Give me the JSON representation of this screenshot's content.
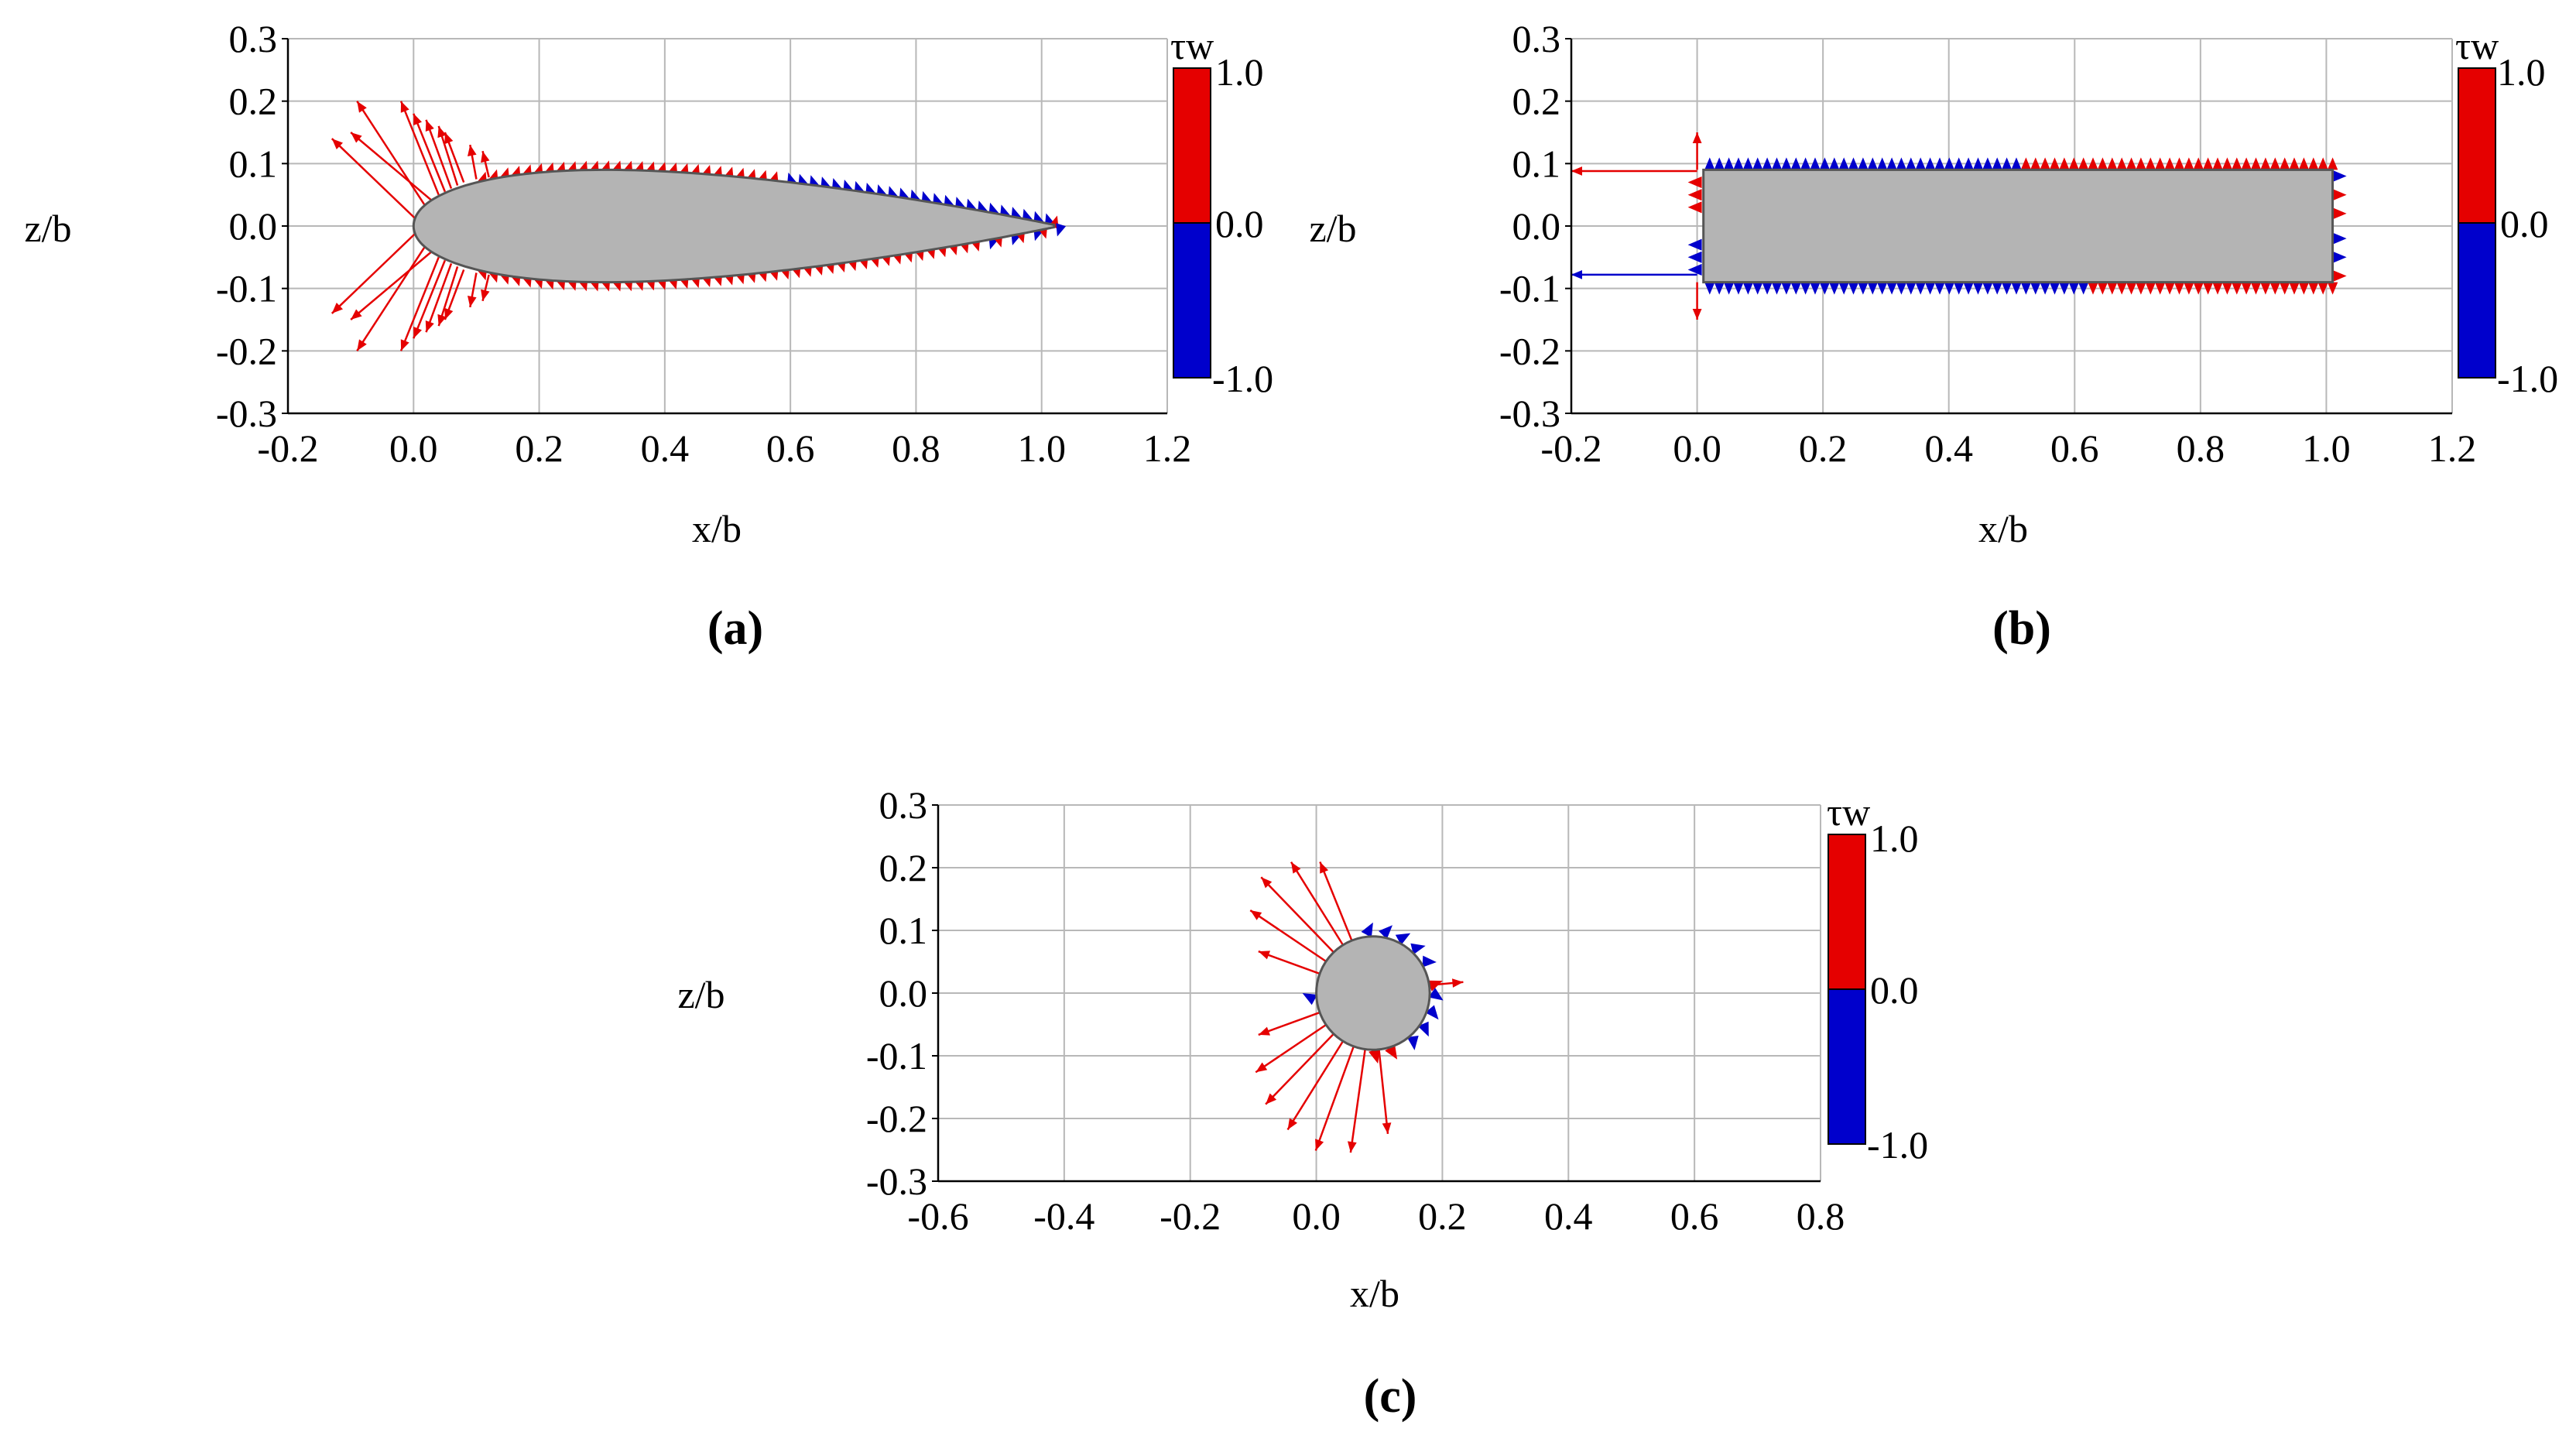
{
  "colors": {
    "positive": "#e50000",
    "negative": "#0000cc",
    "body": "#b4b4b4",
    "grid": "#b8b8b8"
  },
  "chart_data": [
    {
      "type": "vector-field",
      "panel_label": "(a)",
      "shape": "airfoil",
      "xlabel": "x/b",
      "ylabel": "z/b",
      "xlim": [
        -0.2,
        1.2
      ],
      "ylim": [
        -0.3,
        0.3
      ],
      "xticks": [
        "-0.2",
        "0.0",
        "0.2",
        "0.4",
        "0.6",
        "0.8",
        "1.0",
        "1.2"
      ],
      "yticks": [
        "0.3",
        "0.2",
        "0.1",
        "0.0",
        "-0.1",
        "-0.2",
        "-0.3"
      ],
      "colorbar": {
        "title": "τw",
        "max_label": "1.0",
        "mid_label": "0.0",
        "min_label": "-1.0",
        "range": [
          -1.0,
          1.0
        ]
      },
      "body": {
        "chord": [
          0.0,
          1.02
        ],
        "max_thickness_z": 0.09
      }
    },
    {
      "type": "vector-field",
      "panel_label": "(b)",
      "shape": "flat-plate",
      "xlabel": "x/b",
      "ylabel": "z/b",
      "xlim": [
        -0.2,
        1.2
      ],
      "ylim": [
        -0.3,
        0.3
      ],
      "xticks": [
        "-0.2",
        "0.0",
        "0.2",
        "0.4",
        "0.6",
        "0.8",
        "1.0",
        "1.2"
      ],
      "yticks": [
        "0.3",
        "0.2",
        "0.1",
        "0.0",
        "-0.1",
        "-0.2",
        "-0.3"
      ],
      "colorbar": {
        "title": "τw",
        "max_label": "1.0",
        "mid_label": "0.0",
        "min_label": "-1.0",
        "range": [
          -1.0,
          1.0
        ]
      },
      "body": {
        "x_range": [
          0.01,
          1.01
        ],
        "z_range": [
          -0.09,
          0.09
        ]
      }
    },
    {
      "type": "vector-field",
      "panel_label": "(c)",
      "shape": "circle",
      "xlabel": "x/b",
      "ylabel": "z/b",
      "xlim": [
        -0.6,
        0.8
      ],
      "ylim": [
        -0.3,
        0.3
      ],
      "xticks": [
        "-0.6",
        "-0.4",
        "-0.2",
        "0.0",
        "0.2",
        "0.4",
        "0.6",
        "0.8"
      ],
      "yticks": [
        "0.3",
        "0.2",
        "0.1",
        "0.0",
        "-0.1",
        "-0.2",
        "-0.3"
      ],
      "colorbar": {
        "title": "τw",
        "max_label": "1.0",
        "mid_label": "0.0",
        "min_label": "-1.0",
        "range": [
          -1.0,
          1.0
        ]
      },
      "body": {
        "center": [
          0.09,
          0.0
        ],
        "radius": 0.09
      }
    }
  ]
}
